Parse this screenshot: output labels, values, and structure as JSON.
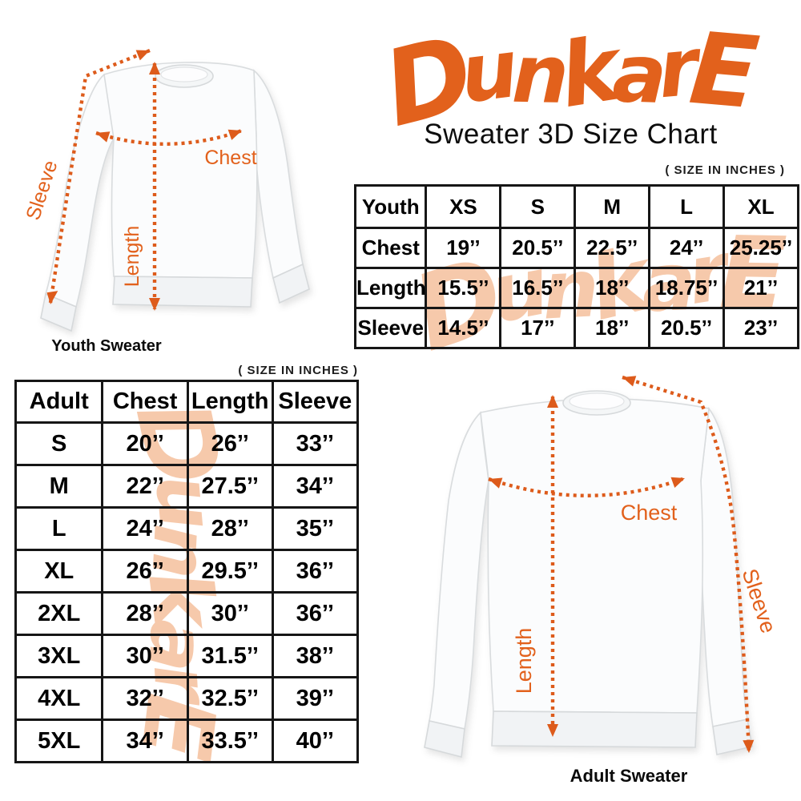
{
  "brand": {
    "name": "DunkarE",
    "accent_color": "#E2611C",
    "arrow_color": "#DD5B1B",
    "watermark_color": "#F6C9AB"
  },
  "header": {
    "subtitle": "Sweater 3D Size Chart"
  },
  "youth_section": {
    "size_note": "( SIZE IN INCHES )",
    "caption": "Youth Sweater",
    "labels": {
      "sleeve": "Sleeve",
      "length": "Length",
      "chest": "Chest"
    },
    "table": {
      "header": [
        "Youth",
        "XS",
        "S",
        "M",
        "L",
        "XL"
      ],
      "rows": [
        {
          "label": "Chest",
          "values": [
            "19’’",
            "20.5’’",
            "22.5’’",
            "24’’",
            "25.25’’"
          ]
        },
        {
          "label": "Length",
          "values": [
            "15.5’’",
            "16.5’’",
            "18’’",
            "18.75’’",
            "21’’"
          ]
        },
        {
          "label": "Sleeve",
          "values": [
            "14.5’’",
            "17’’",
            "18’’",
            "20.5’’",
            "23’’"
          ]
        }
      ]
    }
  },
  "adult_section": {
    "size_note": "( SIZE IN INCHES )",
    "caption": "Adult Sweater",
    "labels": {
      "sleeve": "Sleeve",
      "length": "Length",
      "chest": "Chest"
    },
    "table": {
      "header": [
        "Adult",
        "Chest",
        "Length",
        "Sleeve"
      ],
      "rows": [
        {
          "label": "S",
          "values": [
            "20’’",
            "26’’",
            "33’’"
          ]
        },
        {
          "label": "M",
          "values": [
            "22’’",
            "27.5’’",
            "34’’"
          ]
        },
        {
          "label": "L",
          "values": [
            "24’’",
            "28’’",
            "35’’"
          ]
        },
        {
          "label": "XL",
          "values": [
            "26’’",
            "29.5’’",
            "36’’"
          ]
        },
        {
          "label": "2XL",
          "values": [
            "28’’",
            "30’’",
            "36’’"
          ]
        },
        {
          "label": "3XL",
          "values": [
            "30’’",
            "31.5’’",
            "38’’"
          ]
        },
        {
          "label": "4XL",
          "values": [
            "32’’",
            "32.5’’",
            "39’’"
          ]
        },
        {
          "label": "5XL",
          "values": [
            "34’’",
            "33.5’’",
            "40’’"
          ]
        }
      ]
    }
  }
}
